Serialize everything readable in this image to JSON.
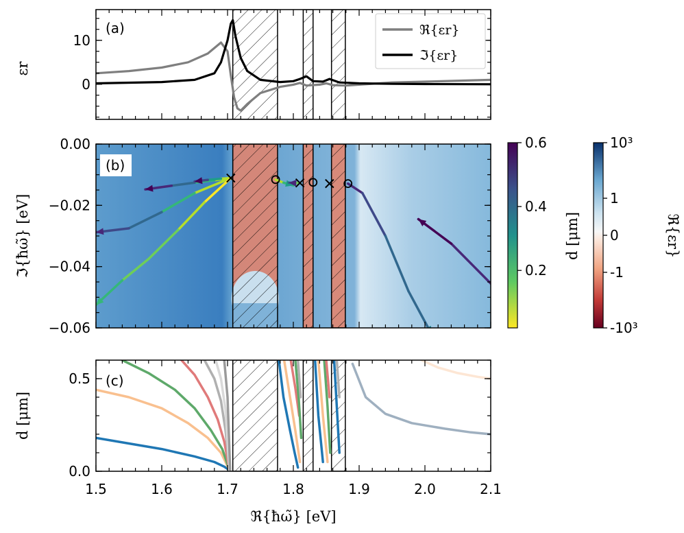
{
  "figure": {
    "panel_labels": [
      "(a)",
      "(b)",
      "(c)"
    ],
    "x_axis_label": "ℜ{ħω̃} [eV]"
  },
  "chart_data": [
    {
      "panel": "(a)",
      "type": "line",
      "ylabel": "εr",
      "xlim": [
        1.5,
        2.1
      ],
      "ylim": [
        -8,
        17
      ],
      "x_ticks": [
        1.5,
        1.6,
        1.7,
        1.8,
        1.9,
        2.0,
        2.1
      ],
      "y_ticks": [
        0,
        10
      ],
      "forbidden_bands": [
        [
          1.708,
          1.776
        ],
        [
          1.815,
          1.83
        ],
        [
          1.858,
          1.879
        ]
      ],
      "series": [
        {
          "name": "ℜ{εr}",
          "color": "#7f7f7f",
          "x": [
            1.5,
            1.55,
            1.6,
            1.64,
            1.67,
            1.69,
            1.7,
            1.705,
            1.71,
            1.715,
            1.72,
            1.73,
            1.75,
            1.78,
            1.8,
            1.81,
            1.82,
            1.84,
            1.85,
            1.86,
            1.88,
            1.95,
            2.0,
            2.1
          ],
          "y": [
            2.5,
            3.0,
            3.8,
            5.0,
            7.0,
            9.5,
            7.5,
            2.0,
            -3.0,
            -5.5,
            -6.0,
            -4.5,
            -2.0,
            -0.6,
            -0.1,
            0.3,
            -0.3,
            -0.1,
            0.2,
            -0.2,
            -0.3,
            0.4,
            0.6,
            1.0
          ]
        },
        {
          "name": "ℑ{εr}",
          "color": "#000000",
          "x": [
            1.5,
            1.6,
            1.65,
            1.68,
            1.69,
            1.7,
            1.705,
            1.708,
            1.712,
            1.72,
            1.73,
            1.75,
            1.78,
            1.8,
            1.81,
            1.82,
            1.83,
            1.845,
            1.855,
            1.87,
            1.9,
            1.95,
            2.0,
            2.1
          ],
          "y": [
            0.2,
            0.5,
            1.0,
            2.5,
            5.0,
            10.0,
            13.8,
            14.6,
            11.0,
            6.0,
            3.0,
            1.0,
            0.5,
            0.7,
            1.2,
            1.8,
            0.7,
            0.6,
            1.2,
            0.4,
            0.2,
            0.1,
            0.05,
            0.0
          ]
        }
      ]
    },
    {
      "panel": "(b)",
      "type": "scatter",
      "xlabel": "ℜ{ħω̃} [eV]",
      "ylabel": "ℑ{ħω̃} [eV]",
      "xlim": [
        1.5,
        2.1
      ],
      "ylim": [
        -0.06,
        0.0
      ],
      "y_ticks": [
        0.0,
        -0.02,
        -0.04,
        -0.06
      ],
      "y_tick_labels": [
        "0.00",
        "−0.02",
        "−0.04",
        "−0.06"
      ],
      "background": "ℜ{εr}",
      "colorbars": [
        {
          "label": "d [μm]",
          "ticks": [
            0.2,
            0.4,
            0.6
          ],
          "tick_labels": [
            "0.2",
            "0.4",
            "0.6"
          ],
          "range": [
            0.02,
            0.6
          ],
          "colormap": "viridis"
        },
        {
          "label": "ℜ{εr}",
          "tick_labels": [
            "10³",
            "1",
            "0",
            "-1",
            "-10³"
          ],
          "colormap": "RdBu"
        }
      ],
      "markers": {
        "x": [
          [
            1.705,
            -0.0111
          ],
          [
            1.81,
            -0.0127
          ],
          [
            1.855,
            -0.0129
          ]
        ],
        "o": [
          [
            1.773,
            -0.0116
          ],
          [
            1.83,
            -0.0125
          ],
          [
            1.883,
            -0.0129
          ]
        ]
      },
      "trajectories": [
        {
          "x": [
            1.705,
            1.68,
            1.65,
            1.615,
            1.575
          ],
          "y": [
            -0.0111,
            -0.0118,
            -0.0126,
            -0.0136,
            -0.0148
          ],
          "d": [
            0.02,
            0.15,
            0.3,
            0.45,
            0.6
          ]
        },
        {
          "x": [
            1.705,
            1.69,
            1.67,
            1.65
          ],
          "y": [
            -0.0111,
            -0.0113,
            -0.0117,
            -0.0122
          ],
          "d": [
            0.02,
            0.2,
            0.4,
            0.6
          ]
        },
        {
          "x": [
            1.705,
            1.65,
            1.6,
            1.55,
            1.5
          ],
          "y": [
            -0.0111,
            -0.016,
            -0.0222,
            -0.0275,
            -0.0288
          ],
          "d": [
            0.02,
            0.15,
            0.3,
            0.45,
            0.55
          ]
        },
        {
          "x": [
            1.705,
            1.665,
            1.625,
            1.58,
            1.54,
            1.5
          ],
          "y": [
            -0.0111,
            -0.019,
            -0.028,
            -0.0375,
            -0.0445,
            -0.0525
          ],
          "d": [
            0.02,
            0.06,
            0.1,
            0.14,
            0.18,
            0.22
          ]
        },
        {
          "x": [
            1.773,
            1.785,
            1.8
          ],
          "y": [
            -0.0116,
            -0.0126,
            -0.0135
          ],
          "d": [
            0.02,
            0.15,
            0.3
          ]
        },
        {
          "x": [
            1.81,
            1.8,
            1.793
          ],
          "y": [
            -0.0127,
            -0.0127,
            -0.0126
          ],
          "d": [
            0.02,
            0.3,
            0.55
          ]
        },
        {
          "x": [
            1.883,
            1.905,
            1.94,
            1.975,
            2.01
          ],
          "y": [
            -0.0129,
            -0.016,
            -0.03,
            -0.048,
            -0.062
          ],
          "d": [
            0.55,
            0.5,
            0.45,
            0.4,
            0.35
          ]
        },
        {
          "x": [
            2.1,
            2.07,
            2.04,
            1.99
          ],
          "y": [
            -0.0455,
            -0.039,
            -0.0325,
            -0.0245
          ],
          "d": [
            0.5,
            0.53,
            0.56,
            0.6
          ]
        }
      ]
    },
    {
      "panel": "(c)",
      "type": "line",
      "ylabel": "d [μm]",
      "xlim": [
        1.5,
        2.1
      ],
      "ylim": [
        0.0,
        0.6
      ],
      "y_ticks": [
        0.0,
        0.5
      ],
      "y_tick_labels": [
        "0.0",
        "0.5"
      ],
      "series": [
        {
          "color": "#1f77b4",
          "x": [
            1.5,
            1.55,
            1.6,
            1.65,
            1.68,
            1.695,
            1.703
          ],
          "y": [
            0.18,
            0.15,
            0.12,
            0.08,
            0.05,
            0.025,
            0.005
          ]
        },
        {
          "color": "#f9c08f",
          "x": [
            1.5,
            1.55,
            1.6,
            1.64,
            1.67,
            1.69,
            1.703
          ],
          "y": [
            0.44,
            0.4,
            0.34,
            0.26,
            0.18,
            0.1,
            0.005
          ]
        },
        {
          "color": "#5ea96a",
          "x": [
            1.54,
            1.58,
            1.62,
            1.65,
            1.675,
            1.692,
            1.703
          ],
          "y": [
            0.6,
            0.53,
            0.44,
            0.34,
            0.22,
            0.12,
            0.005
          ]
        },
        {
          "color": "#e07a7a",
          "x": [
            1.63,
            1.65,
            1.67,
            1.685,
            1.695,
            1.703
          ],
          "y": [
            0.6,
            0.52,
            0.4,
            0.28,
            0.16,
            0.005
          ]
        },
        {
          "color": "#b0b0b0",
          "x": [
            1.665,
            1.68,
            1.69,
            1.697,
            1.703
          ],
          "y": [
            0.6,
            0.5,
            0.38,
            0.22,
            0.005
          ]
        },
        {
          "color": "#d9d9d9",
          "x": [
            1.682,
            1.69,
            1.697,
            1.703
          ],
          "y": [
            0.6,
            0.5,
            0.33,
            0.005
          ]
        },
        {
          "color": "#9a9a9a",
          "x": [
            1.695,
            1.7,
            1.704
          ],
          "y": [
            0.6,
            0.4,
            0.005
          ]
        },
        {
          "color": "#1f77b4",
          "x": [
            1.778,
            1.785,
            1.795,
            1.802,
            1.807
          ],
          "y": [
            0.6,
            0.4,
            0.22,
            0.1,
            0.02
          ]
        },
        {
          "color": "#f9c08f",
          "x": [
            1.786,
            1.795,
            1.803,
            1.81
          ],
          "y": [
            0.6,
            0.4,
            0.22,
            0.05
          ]
        },
        {
          "color": "#e07a7a",
          "x": [
            1.796,
            1.803,
            1.809
          ],
          "y": [
            0.6,
            0.45,
            0.3
          ]
        },
        {
          "color": "#5ea96a",
          "x": [
            1.803,
            1.808,
            1.812
          ],
          "y": [
            0.6,
            0.4,
            0.18
          ]
        },
        {
          "color": "#b0b0b0",
          "x": [
            1.807,
            1.811
          ],
          "y": [
            0.6,
            0.4
          ]
        },
        {
          "color": "#1f77b4",
          "x": [
            1.833,
            1.838,
            1.845
          ],
          "y": [
            0.6,
            0.3,
            0.05
          ]
        },
        {
          "color": "#f9c08f",
          "x": [
            1.838,
            1.845,
            1.852
          ],
          "y": [
            0.6,
            0.3,
            0.05
          ]
        },
        {
          "color": "#5ea96a",
          "x": [
            1.847,
            1.852,
            1.856
          ],
          "y": [
            0.6,
            0.35,
            0.1
          ]
        },
        {
          "color": "#e07a7a",
          "x": [
            1.85,
            1.855
          ],
          "y": [
            0.6,
            0.4
          ]
        },
        {
          "color": "#1f77b4",
          "x": [
            1.862,
            1.866,
            1.87
          ],
          "y": [
            0.6,
            0.35,
            0.1
          ]
        },
        {
          "color": "#b0b0b0",
          "x": [
            1.866,
            1.87
          ],
          "y": [
            0.6,
            0.4
          ]
        },
        {
          "color": "#9fb0c0",
          "x": [
            1.89,
            1.91,
            1.94,
            1.98,
            2.03,
            2.07,
            2.1
          ],
          "y": [
            0.58,
            0.4,
            0.31,
            0.26,
            0.23,
            0.21,
            0.2
          ]
        },
        {
          "color": "#fde6d4",
          "x": [
            1.995,
            2.02,
            2.05,
            2.08,
            2.1
          ],
          "y": [
            0.6,
            0.56,
            0.53,
            0.51,
            0.5
          ]
        }
      ]
    }
  ],
  "tick_labels": {
    "a_y": [
      "0",
      "10"
    ],
    "x": [
      "1.5",
      "1.6",
      "1.7",
      "1.8",
      "1.9",
      "2.0",
      "2.1"
    ],
    "b_y": [
      "0.00",
      "−0.02",
      "−0.04",
      "−0.06"
    ],
    "c_y": [
      "0.0",
      "0.5"
    ],
    "cb_d": [
      "0.2",
      "0.4",
      "0.6"
    ],
    "cb_eps": [
      "10³",
      "1",
      "0",
      "-1",
      "-10³"
    ]
  },
  "labels": {
    "a_ylabel": "εr",
    "b_ylabel": "ℑ{ħω̃} [eV]",
    "c_ylabel": "d [μm]",
    "cb_d_label": "d [μm]",
    "cb_eps_label": "ℜ{εr}",
    "legend_re": "ℜ{εr}",
    "legend_im": "ℑ{εr}"
  },
  "colors": {
    "re": "#7f7f7f",
    "im": "#000000",
    "blue_dark": "#2b6fad",
    "blue_light": "#9ecae1",
    "red": "#e07b5f"
  }
}
